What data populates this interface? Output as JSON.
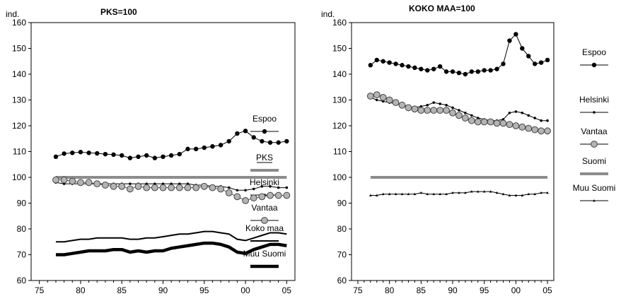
{
  "chart_data": [
    {
      "type": "line",
      "title": "PKS=100",
      "ylabel": "ind.",
      "xlabel": "",
      "ylim": [
        60,
        160
      ],
      "xlim": [
        1974,
        2006
      ],
      "yticks": [
        "60",
        "70",
        "80",
        "90",
        "100",
        "110",
        "120",
        "130",
        "140",
        "150",
        "160"
      ],
      "xticks": [
        "75",
        "80",
        "85",
        "90",
        "95",
        "00",
        "05"
      ],
      "x": [
        1977,
        1978,
        1979,
        1980,
        1981,
        1982,
        1983,
        1984,
        1985,
        1986,
        1987,
        1988,
        1989,
        1990,
        1991,
        1992,
        1993,
        1994,
        1995,
        1996,
        1997,
        1998,
        1999,
        2000,
        2001,
        2002,
        2003,
        2004,
        2005
      ],
      "series": [
        {
          "name": "Espoo",
          "style": "dot",
          "color": "#000000",
          "values": [
            108,
            109.2,
            109.5,
            109.8,
            109.5,
            109.3,
            109,
            108.8,
            108.5,
            107.5,
            108,
            108.5,
            107.5,
            108,
            108.5,
            109,
            111,
            111,
            111.5,
            112,
            112.5,
            114,
            117,
            118,
            115.5,
            114,
            113.5,
            113.5,
            114
          ]
        },
        {
          "name": "PKS",
          "style": "gray-line",
          "color": "#8c8c8c",
          "values": [
            100,
            100,
            100,
            100,
            100,
            100,
            100,
            100,
            100,
            100,
            100,
            100,
            100,
            100,
            100,
            100,
            100,
            100,
            100,
            100,
            100,
            100,
            100,
            100,
            100,
            100,
            100,
            100,
            100
          ]
        },
        {
          "name": "Helsinki",
          "style": "small-dot",
          "color": "#000000",
          "values": [
            98,
            97.5,
            97.5,
            97.5,
            97.5,
            97.5,
            97.5,
            97.5,
            97.5,
            97.5,
            97.5,
            97.5,
            97.5,
            97.5,
            97.5,
            97.5,
            97.5,
            97,
            97,
            96.5,
            96.5,
            96,
            95,
            95,
            95.5,
            96.5,
            96.5,
            96,
            96
          ]
        },
        {
          "name": "Vantaa",
          "style": "circle",
          "color": "#b4b4b4",
          "values": [
            99,
            99,
            98.5,
            98,
            98,
            97.5,
            97,
            96.5,
            96.5,
            95.5,
            96.5,
            96,
            96,
            96,
            96,
            96,
            96,
            96,
            96.5,
            96,
            95.5,
            94,
            92.5,
            91,
            92,
            92.5,
            93,
            93,
            93
          ]
        },
        {
          "name": "Koko maa",
          "style": "thick-line",
          "color": "#000000",
          "values": [
            75,
            75,
            75.5,
            76,
            76,
            76.5,
            76.5,
            76.5,
            76.5,
            76,
            76,
            76.5,
            76.5,
            77,
            77.5,
            78,
            78,
            78.5,
            79,
            79,
            78.5,
            78,
            76,
            75.5,
            76.5,
            77.5,
            78.5,
            78.5,
            78
          ]
        },
        {
          "name": "Muu  Suomi",
          "style": "thicker-line",
          "color": "#000000",
          "values": [
            70,
            70,
            70.5,
            71,
            71.5,
            71.5,
            71.5,
            72,
            72,
            71,
            71.5,
            71,
            71.5,
            71.5,
            72.5,
            73,
            73.5,
            74,
            74.5,
            74.5,
            74,
            73,
            71,
            70.5,
            72,
            73,
            74,
            74,
            73.5
          ]
        }
      ]
    },
    {
      "type": "line",
      "title": "KOKO MAA=100",
      "ylabel": "ind.",
      "xlabel": "",
      "ylim": [
        60,
        160
      ],
      "xlim": [
        1974,
        2006
      ],
      "yticks": [
        "60",
        "70",
        "80",
        "90",
        "100",
        "110",
        "120",
        "130",
        "140",
        "150",
        "160"
      ],
      "xticks": [
        "75",
        "80",
        "85",
        "90",
        "95",
        "00",
        "05"
      ],
      "x": [
        1977,
        1978,
        1979,
        1980,
        1981,
        1982,
        1983,
        1984,
        1985,
        1986,
        1987,
        1988,
        1989,
        1990,
        1991,
        1992,
        1993,
        1994,
        1995,
        1996,
        1997,
        1998,
        1999,
        2000,
        2001,
        2002,
        2003,
        2004,
        2005
      ],
      "series": [
        {
          "name": "Espoo",
          "style": "dot",
          "color": "#000000",
          "values": [
            143.5,
            145.5,
            145,
            144.5,
            144,
            143.5,
            143,
            142.5,
            142,
            141.5,
            142,
            143,
            141,
            141,
            140.5,
            140,
            141,
            141,
            141.5,
            141.5,
            142,
            144,
            153,
            155.5,
            150,
            147,
            144,
            144.5,
            145.5
          ]
        },
        {
          "name": "Helsinki",
          "style": "small-dot",
          "color": "#000000",
          "values": [
            131,
            130,
            129.5,
            129,
            128.5,
            128,
            127.5,
            127,
            127.5,
            128,
            129,
            128.5,
            128,
            127,
            126,
            125,
            124,
            123,
            122.5,
            122,
            122,
            122.5,
            125,
            125.5,
            125,
            124,
            123,
            122,
            122
          ]
        },
        {
          "name": "Vantaa",
          "style": "circle",
          "color": "#b4b4b4",
          "values": [
            131.5,
            132,
            131,
            130,
            129,
            128,
            127,
            126.5,
            126,
            126,
            126,
            126,
            126,
            125,
            124,
            123,
            122,
            121.5,
            121.5,
            121.5,
            121,
            121,
            120.5,
            120,
            119.5,
            119,
            118.5,
            118,
            118
          ]
        },
        {
          "name": "Suomi",
          "style": "gray-line",
          "color": "#8c8c8c",
          "values": [
            100,
            100,
            100,
            100,
            100,
            100,
            100,
            100,
            100,
            100,
            100,
            100,
            100,
            100,
            100,
            100,
            100,
            100,
            100,
            100,
            100,
            100,
            100,
            100,
            100,
            100,
            100,
            100,
            100
          ]
        },
        {
          "name": "Muu Suomi",
          "style": "triangle",
          "color": "#000000",
          "values": [
            93,
            93,
            93.5,
            93.5,
            93.5,
            93.5,
            93.5,
            93.5,
            94,
            93.5,
            93.5,
            93.5,
            93.5,
            94,
            94,
            94,
            94.5,
            94.5,
            94.5,
            94.5,
            94,
            93.5,
            93,
            93,
            93,
            93.5,
            93.5,
            94,
            94
          ]
        }
      ]
    }
  ]
}
